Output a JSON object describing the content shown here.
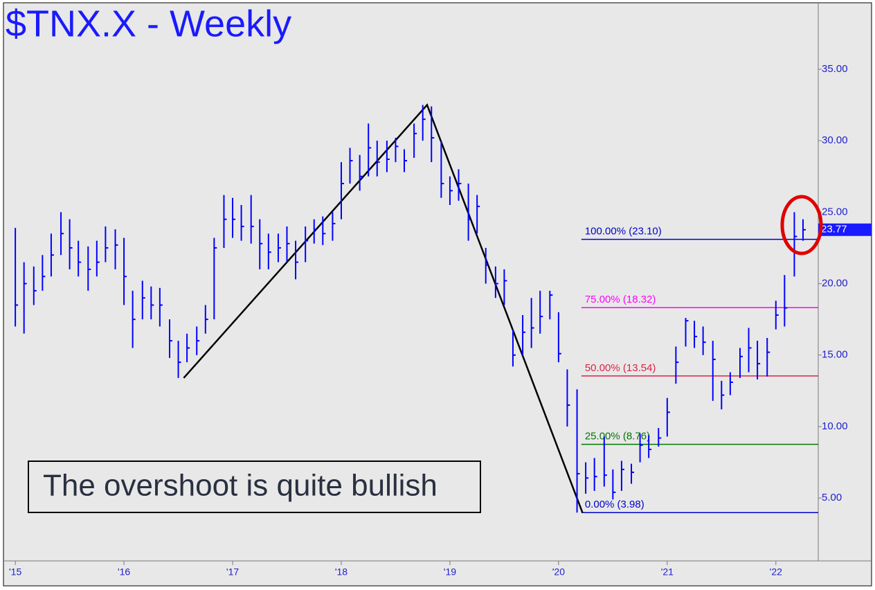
{
  "chart_data": {
    "type": "ohlc",
    "title": "$TNX.X - Weekly",
    "color": "#0000ff",
    "annotation": "The overshoot is quite bullish",
    "x": [
      2015.0,
      2015.08,
      2015.17,
      2015.25,
      2015.33,
      2015.42,
      2015.5,
      2015.58,
      2015.67,
      2015.75,
      2015.83,
      2015.92,
      2016.0,
      2016.08,
      2016.17,
      2016.25,
      2016.33,
      2016.42,
      2016.5,
      2016.58,
      2016.67,
      2016.75,
      2016.83,
      2016.92,
      2017.0,
      2017.08,
      2017.17,
      2017.25,
      2017.33,
      2017.42,
      2017.5,
      2017.58,
      2017.67,
      2017.75,
      2017.83,
      2017.92,
      2018.0,
      2018.08,
      2018.17,
      2018.25,
      2018.33,
      2018.42,
      2018.5,
      2018.58,
      2018.67,
      2018.75,
      2018.83,
      2018.92,
      2019.0,
      2019.08,
      2019.17,
      2019.25,
      2019.33,
      2019.42,
      2019.5,
      2019.58,
      2019.67,
      2019.75,
      2019.83,
      2019.92,
      2020.0,
      2020.08,
      2020.17,
      2020.25,
      2020.33,
      2020.42,
      2020.5,
      2020.58,
      2020.67,
      2020.75,
      2020.83,
      2020.92,
      2021.0,
      2021.08,
      2021.17,
      2021.25,
      2021.33,
      2021.42,
      2021.5,
      2021.58,
      2021.67,
      2021.75,
      2021.83,
      2021.92,
      2022.0,
      2022.08,
      2022.17,
      2022.25
    ],
    "high": [
      23.9,
      21.5,
      21.2,
      22.0,
      23.5,
      25.0,
      24.5,
      23.0,
      22.6,
      23.0,
      24.0,
      23.8,
      23.2,
      19.5,
      20.2,
      19.8,
      19.7,
      17.5,
      16.0,
      16.5,
      17.0,
      18.5,
      23.2,
      26.2,
      26.0,
      25.5,
      26.2,
      24.5,
      23.5,
      23.5,
      24.0,
      23.0,
      24.0,
      24.5,
      24.7,
      25.0,
      28.5,
      29.5,
      29.0,
      31.2,
      30.0,
      30.0,
      30.2,
      29.4,
      31.2,
      32.5,
      32.4,
      30.0,
      27.5,
      28.0,
      27.0,
      26.2,
      22.5,
      21.2,
      21.0,
      16.8,
      17.8,
      19.0,
      19.5,
      19.5,
      18.0,
      14.0,
      12.6,
      7.5,
      7.8,
      9.3,
      7.0,
      7.6,
      7.4,
      9.5,
      9.4,
      9.9,
      12.0,
      15.6,
      17.6,
      17.4,
      17.0,
      16.0,
      13.2,
      13.8,
      15.5,
      16.9,
      16.0,
      16.2,
      18.8,
      20.6,
      25.0,
      24.5
    ],
    "low": [
      17.0,
      16.5,
      18.5,
      19.5,
      20.5,
      22.0,
      21.0,
      20.5,
      19.5,
      20.5,
      21.5,
      21.0,
      18.5,
      15.5,
      17.5,
      17.5,
      17.0,
      14.8,
      13.4,
      14.5,
      15.0,
      16.5,
      17.5,
      22.5,
      23.2,
      23.0,
      22.8,
      21.0,
      21.0,
      21.5,
      21.5,
      20.3,
      21.5,
      22.8,
      22.7,
      23.0,
      24.5,
      27.0,
      26.5,
      27.5,
      27.5,
      27.8,
      28.5,
      27.8,
      28.8,
      30.0,
      28.5,
      26.0,
      25.5,
      25.8,
      23.0,
      23.5,
      20.0,
      19.0,
      18.5,
      14.2,
      15.0,
      15.5,
      16.5,
      17.5,
      14.5,
      10.0,
      3.98,
      5.3,
      5.5,
      5.8,
      4.9,
      5.5,
      6.0,
      7.5,
      7.8,
      8.6,
      9.3,
      13.0,
      15.6,
      15.5,
      15.0,
      11.8,
      11.2,
      12.2,
      13.4,
      13.8,
      13.3,
      13.5,
      16.8,
      17.0,
      20.5,
      23.0
    ],
    "close": [
      18.5,
      20.0,
      19.5,
      20.5,
      22.0,
      23.5,
      22.5,
      21.5,
      21.0,
      21.5,
      22.5,
      22.7,
      20.5,
      17.5,
      19.0,
      18.5,
      18.5,
      16.0,
      14.5,
      15.5,
      16.0,
      17.5,
      22.5,
      24.5,
      24.5,
      24.0,
      24.0,
      22.8,
      22.2,
      22.5,
      22.8,
      21.5,
      23.0,
      23.8,
      23.5,
      24.2,
      27.0,
      28.6,
      27.5,
      29.5,
      28.5,
      28.7,
      29.6,
      28.6,
      30.5,
      31.5,
      30.2,
      27.0,
      26.5,
      27.0,
      24.5,
      25.4,
      21.3,
      20.0,
      20.2,
      15.0,
      16.6,
      16.9,
      17.7,
      19.2,
      15.1,
      11.5,
      6.7,
      6.4,
      6.5,
      6.6,
      5.4,
      7.0,
      6.8,
      8.7,
      8.4,
      9.2,
      11.0,
      14.5,
      17.4,
      16.3,
      15.9,
      14.7,
      12.2,
      13.1,
      14.9,
      15.5,
      14.4,
      15.2,
      17.8,
      18.3,
      23.3,
      23.77
    ],
    "last_value": 23.77,
    "levels_start": 2020.21,
    "levels": [
      {
        "label": "100.00% (23.10)",
        "value": 23.1,
        "color": "#0000cc"
      },
      {
        "label": "75.00% (18.32)",
        "value": 18.32,
        "color": "#ff00ff"
      },
      {
        "label": "50.00% (13.54)",
        "value": 13.54,
        "color": "#dd2244"
      },
      {
        "label": "25.00% (8.76)",
        "value": 8.76,
        "color": "#007700"
      },
      {
        "label": "0.00% (3.98)",
        "value": 3.98,
        "color": "#0000cc"
      }
    ],
    "trend_line": {
      "x": [
        2016.55,
        2018.79,
        2020.22
      ],
      "y": [
        13.4,
        32.5,
        3.98
      ]
    },
    "xlim": [
      2014.91,
      2022.39
    ],
    "ylim": [
      0.6,
      39.6
    ],
    "xticks": [
      {
        "value": 2015,
        "label": "'15"
      },
      {
        "value": 2016,
        "label": "'16"
      },
      {
        "value": 2017,
        "label": "'17"
      },
      {
        "value": 2018,
        "label": "'18"
      },
      {
        "value": 2019,
        "label": "'19"
      },
      {
        "value": 2020,
        "label": "'20"
      },
      {
        "value": 2021,
        "label": "'21"
      },
      {
        "value": 2022,
        "label": "'22"
      }
    ],
    "yticks": [
      {
        "value": 5,
        "label": "5.00"
      },
      {
        "value": 10,
        "label": "10.00"
      },
      {
        "value": 15,
        "label": "15.00"
      },
      {
        "value": 20,
        "label": "20.00"
      },
      {
        "value": 25,
        "label": "25.00"
      },
      {
        "value": 30,
        "label": "30.00"
      },
      {
        "value": 35,
        "label": "35.00"
      }
    ]
  }
}
